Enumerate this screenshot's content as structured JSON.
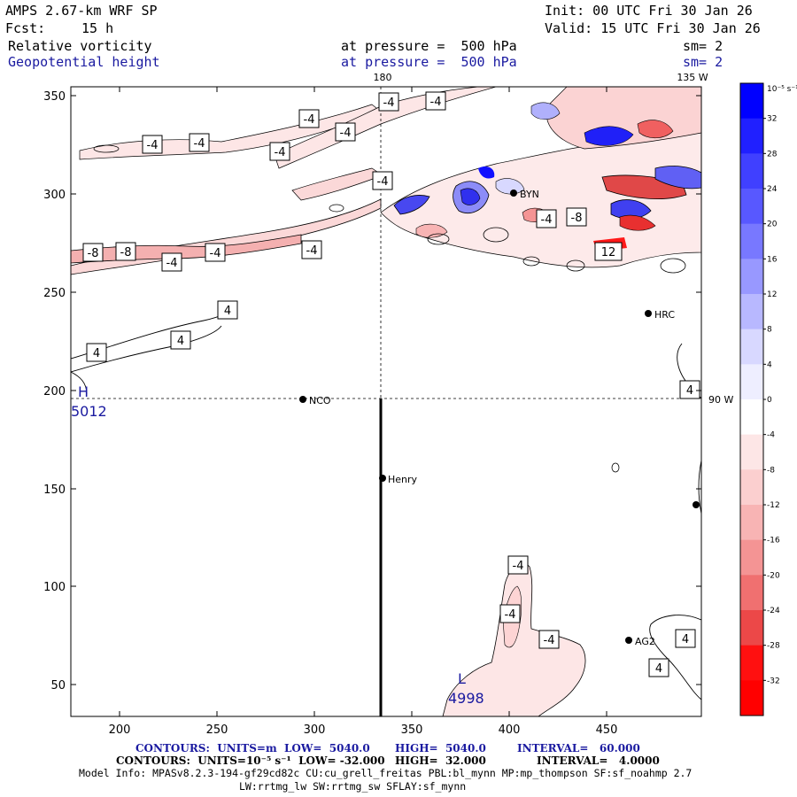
{
  "header": {
    "model": "AMPS 2.67-km WRF SP",
    "init": "Init: 00 UTC Fri 30 Jan 26",
    "fcst_label": "Fcst:",
    "fcst_value": "15 h",
    "valid": "Valid: 15 UTC Fri 30 Jan 26",
    "field1_name": "Relative vorticity",
    "field1_level": "at pressure =  500 hPa",
    "field1_smooth": "sm= 2",
    "field2_name": "Geopotential height",
    "field2_level": "at pressure =  500 hPa",
    "field2_smooth": "sm= 2"
  },
  "map": {
    "lon_180": "180",
    "lon_135w": "135 W",
    "lon_90w": "90 W",
    "x_ticks": [
      "200",
      "250",
      "300",
      "350",
      "400",
      "450"
    ],
    "y_ticks": [
      "350",
      "300",
      "250",
      "200",
      "150",
      "100",
      "50"
    ],
    "stations": [
      {
        "name": "NCO"
      },
      {
        "name": "Henry"
      },
      {
        "name": "HRC"
      },
      {
        "name": "AG2"
      },
      {
        "name": "BYN"
      }
    ],
    "pressure_centers": [
      {
        "type": "H",
        "value": "5012"
      },
      {
        "type": "L",
        "value": "4998"
      }
    ],
    "contour_labels": [
      "-4",
      "-4",
      "-4",
      "-4",
      "-4",
      "-4",
      "-4",
      "-4",
      "-8",
      "-8",
      "-4",
      "-4",
      "-4",
      "-4",
      "-4",
      "-4",
      "-8",
      "12",
      "4",
      "4",
      "4",
      "-4",
      "-4",
      "-4",
      "4",
      "4",
      "4"
    ]
  },
  "colorbar": {
    "unit_label": "10⁻⁵ s⁻¹",
    "ticks": [
      "32",
      "28",
      "24",
      "20",
      "16",
      "12",
      "8",
      "4",
      "0",
      "-4",
      "-8",
      "-12",
      "-16",
      "-20",
      "-24",
      "-28",
      "-32"
    ],
    "colors": [
      "#0000ff",
      "#2020ff",
      "#4040ff",
      "#5858ff",
      "#7878ff",
      "#9898ff",
      "#b8b8ff",
      "#d8d8ff",
      "#eeeeff",
      "#ffffff",
      "#fde6e6",
      "#fbcfcf",
      "#f8b4b4",
      "#f49494",
      "#f07070",
      "#ec4848",
      "#ff1010",
      "#ff0000"
    ]
  },
  "footer": {
    "line1_a": "CONTOURS:  UNITS=m  LOW=  5040.0",
    "line1_b": "HIGH=  5040.0",
    "line1_c": "INTERVAL=   60.000",
    "line2_a": "CONTOURS:  UNITS=10⁻⁵ s⁻¹  LOW= -32.000",
    "line2_b": "HIGH=  32.000",
    "line2_c": "INTERVAL=   4.0000",
    "model_info": "Model Info: MPASv8.2.3-194-gf29cd82c CU:cu_grell_freitas PBL:bl_mynn MP:mp_thompson SF:sf_noahmp 2.7",
    "model_info2": "LW:rrtmg_lw SW:rrtmg_sw SFLAY:sf_mynn"
  }
}
